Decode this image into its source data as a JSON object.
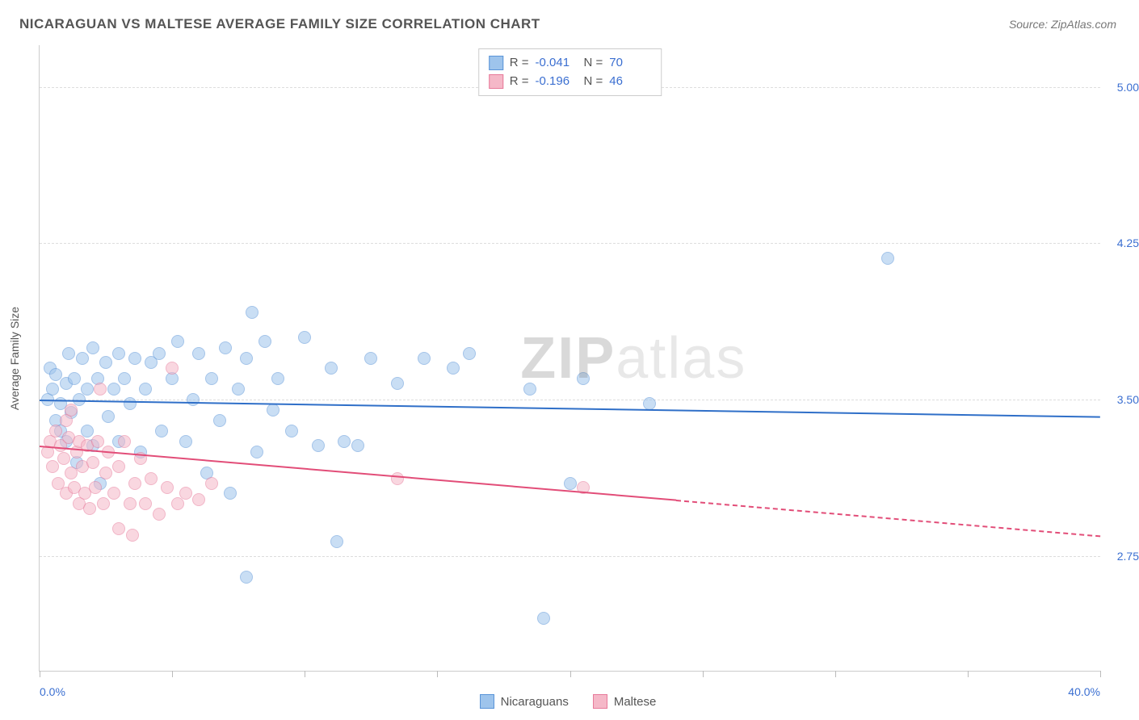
{
  "title": "NICARAGUAN VS MALTESE AVERAGE FAMILY SIZE CORRELATION CHART",
  "source_prefix": "Source: ",
  "source_name": "ZipAtlas.com",
  "y_axis_label": "Average Family Size",
  "watermark_bold": "ZIP",
  "watermark_light": "atlas",
  "chart": {
    "type": "scatter",
    "background_color": "#ffffff",
    "grid_color": "#dddddd",
    "axis_color": "#cccccc",
    "label_color": "#3b6fd1",
    "title_color": "#555555",
    "xlim": [
      0,
      40
    ],
    "ylim": [
      2.2,
      5.2
    ],
    "x_tick_positions": [
      0,
      5,
      10,
      15,
      20,
      25,
      30,
      35,
      40
    ],
    "x_tick_labels": {
      "0": "0.0%",
      "40": "40.0%"
    },
    "y_ticks": [
      2.75,
      3.5,
      4.25,
      5.0
    ],
    "y_tick_labels": [
      "2.75",
      "3.50",
      "4.25",
      "5.00"
    ],
    "marker_radius": 8,
    "marker_opacity": 0.55,
    "line_width": 2
  },
  "series": [
    {
      "name": "Nicaraguans",
      "color_fill": "#9ec4ec",
      "color_stroke": "#5a94d8",
      "color_line": "#2f6fc8",
      "R": "-0.041",
      "N": "70",
      "trend": {
        "x1": 0,
        "y1": 3.5,
        "x2": 40,
        "y2": 3.42,
        "solid_until_x": 40
      },
      "points": [
        [
          0.3,
          3.5
        ],
        [
          0.4,
          3.65
        ],
        [
          0.5,
          3.55
        ],
        [
          0.6,
          3.4
        ],
        [
          0.6,
          3.62
        ],
        [
          0.8,
          3.48
        ],
        [
          0.8,
          3.35
        ],
        [
          1.0,
          3.58
        ],
        [
          1.0,
          3.3
        ],
        [
          1.1,
          3.72
        ],
        [
          1.2,
          3.44
        ],
        [
          1.3,
          3.6
        ],
        [
          1.4,
          3.2
        ],
        [
          1.5,
          3.5
        ],
        [
          1.6,
          3.7
        ],
        [
          1.8,
          3.35
        ],
        [
          1.8,
          3.55
        ],
        [
          2.0,
          3.75
        ],
        [
          2.0,
          3.28
        ],
        [
          2.2,
          3.6
        ],
        [
          2.3,
          3.1
        ],
        [
          2.5,
          3.68
        ],
        [
          2.6,
          3.42
        ],
        [
          2.8,
          3.55
        ],
        [
          3.0,
          3.72
        ],
        [
          3.0,
          3.3
        ],
        [
          3.2,
          3.6
        ],
        [
          3.4,
          3.48
        ],
        [
          3.6,
          3.7
        ],
        [
          3.8,
          3.25
        ],
        [
          4.0,
          3.55
        ],
        [
          4.2,
          3.68
        ],
        [
          4.5,
          3.72
        ],
        [
          4.6,
          3.35
        ],
        [
          5.0,
          3.6
        ],
        [
          5.2,
          3.78
        ],
        [
          5.5,
          3.3
        ],
        [
          5.8,
          3.5
        ],
        [
          6.0,
          3.72
        ],
        [
          6.3,
          3.15
        ],
        [
          6.5,
          3.6
        ],
        [
          6.8,
          3.4
        ],
        [
          7.0,
          3.75
        ],
        [
          7.2,
          3.05
        ],
        [
          7.5,
          3.55
        ],
        [
          7.8,
          3.7
        ],
        [
          8.0,
          3.92
        ],
        [
          8.2,
          3.25
        ],
        [
          8.5,
          3.78
        ],
        [
          8.8,
          3.45
        ],
        [
          9.0,
          3.6
        ],
        [
          9.5,
          3.35
        ],
        [
          7.8,
          2.65
        ],
        [
          10.0,
          3.8
        ],
        [
          10.5,
          3.28
        ],
        [
          11.0,
          3.65
        ],
        [
          11.2,
          2.82
        ],
        [
          11.5,
          3.3
        ],
        [
          12.0,
          3.28
        ],
        [
          12.5,
          3.7
        ],
        [
          13.5,
          3.58
        ],
        [
          14.5,
          3.7
        ],
        [
          15.6,
          3.65
        ],
        [
          16.2,
          3.72
        ],
        [
          18.5,
          3.55
        ],
        [
          19.0,
          2.45
        ],
        [
          20.0,
          3.1
        ],
        [
          23.0,
          3.48
        ],
        [
          32.0,
          4.18
        ],
        [
          20.5,
          3.6
        ]
      ]
    },
    {
      "name": "Maltese",
      "color_fill": "#f5b8c8",
      "color_stroke": "#e77a9a",
      "color_line": "#e24d78",
      "R": "-0.196",
      "N": "46",
      "trend": {
        "x1": 0,
        "y1": 3.28,
        "x2": 40,
        "y2": 2.85,
        "solid_until_x": 24
      },
      "points": [
        [
          0.3,
          3.25
        ],
        [
          0.4,
          3.3
        ],
        [
          0.5,
          3.18
        ],
        [
          0.6,
          3.35
        ],
        [
          0.7,
          3.1
        ],
        [
          0.8,
          3.28
        ],
        [
          0.9,
          3.22
        ],
        [
          1.0,
          3.4
        ],
        [
          1.0,
          3.05
        ],
        [
          1.1,
          3.32
        ],
        [
          1.2,
          3.15
        ],
        [
          1.2,
          3.45
        ],
        [
          1.3,
          3.08
        ],
        [
          1.4,
          3.25
        ],
        [
          1.5,
          3.0
        ],
        [
          1.5,
          3.3
        ],
        [
          1.6,
          3.18
        ],
        [
          1.7,
          3.05
        ],
        [
          1.8,
          3.28
        ],
        [
          1.9,
          2.98
        ],
        [
          2.0,
          3.2
        ],
        [
          2.1,
          3.08
        ],
        [
          2.2,
          3.3
        ],
        [
          2.3,
          3.55
        ],
        [
          2.4,
          3.0
        ],
        [
          2.5,
          3.15
        ],
        [
          2.6,
          3.25
        ],
        [
          2.8,
          3.05
        ],
        [
          3.0,
          2.88
        ],
        [
          3.0,
          3.18
        ],
        [
          3.2,
          3.3
        ],
        [
          3.4,
          3.0
        ],
        [
          3.6,
          3.1
        ],
        [
          3.8,
          3.22
        ],
        [
          4.0,
          3.0
        ],
        [
          4.2,
          3.12
        ],
        [
          4.5,
          2.95
        ],
        [
          4.8,
          3.08
        ],
        [
          5.0,
          3.65
        ],
        [
          5.2,
          3.0
        ],
        [
          5.5,
          3.05
        ],
        [
          6.0,
          3.02
        ],
        [
          6.5,
          3.1
        ],
        [
          13.5,
          3.12
        ],
        [
          20.5,
          3.08
        ],
        [
          3.5,
          2.85
        ]
      ]
    }
  ],
  "stat_legend_labels": {
    "R": "R =",
    "N": "N ="
  },
  "title_fontsize": 17,
  "label_fontsize": 14
}
